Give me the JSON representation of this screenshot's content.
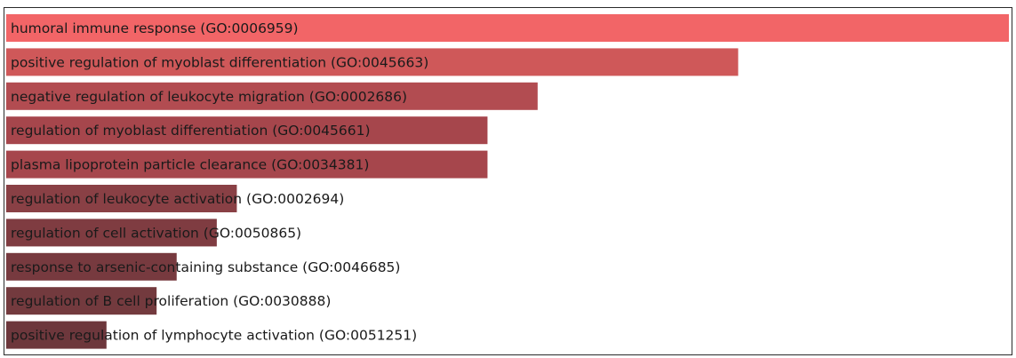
{
  "chart_data": {
    "type": "bar",
    "orientation": "horizontal",
    "title": "",
    "xlabel": "",
    "ylabel": "",
    "grid": false,
    "legend": "none",
    "xlim": [
      0,
      1
    ],
    "categories": [
      "humoral immune response (GO:0006959)",
      "positive regulation of myoblast differentiation (GO:0045663)",
      "negative regulation of leukocyte migration (GO:0002686)",
      "regulation of myoblast differentiation (GO:0045661)",
      "plasma lipoprotein particle clearance (GO:0034381)",
      "regulation of leukocyte activation (GO:0002694)",
      "regulation of cell activation (GO:0050865)",
      "response to arsenic-containing substance (GO:0046685)",
      "regulation of B cell proliferation (GO:0030888)",
      "positive regulation of lymphocyte activation (GO:0051251)"
    ],
    "values": [
      1.0,
      0.73,
      0.53,
      0.48,
      0.48,
      0.23,
      0.21,
      0.17,
      0.15,
      0.1
    ],
    "colors": [
      "#f26567",
      "#cf5859",
      "#b24c51",
      "#a6464c",
      "#a6464c",
      "#894045",
      "#7f3c41",
      "#773a3f",
      "#733a3e",
      "#6d373c"
    ]
  }
}
